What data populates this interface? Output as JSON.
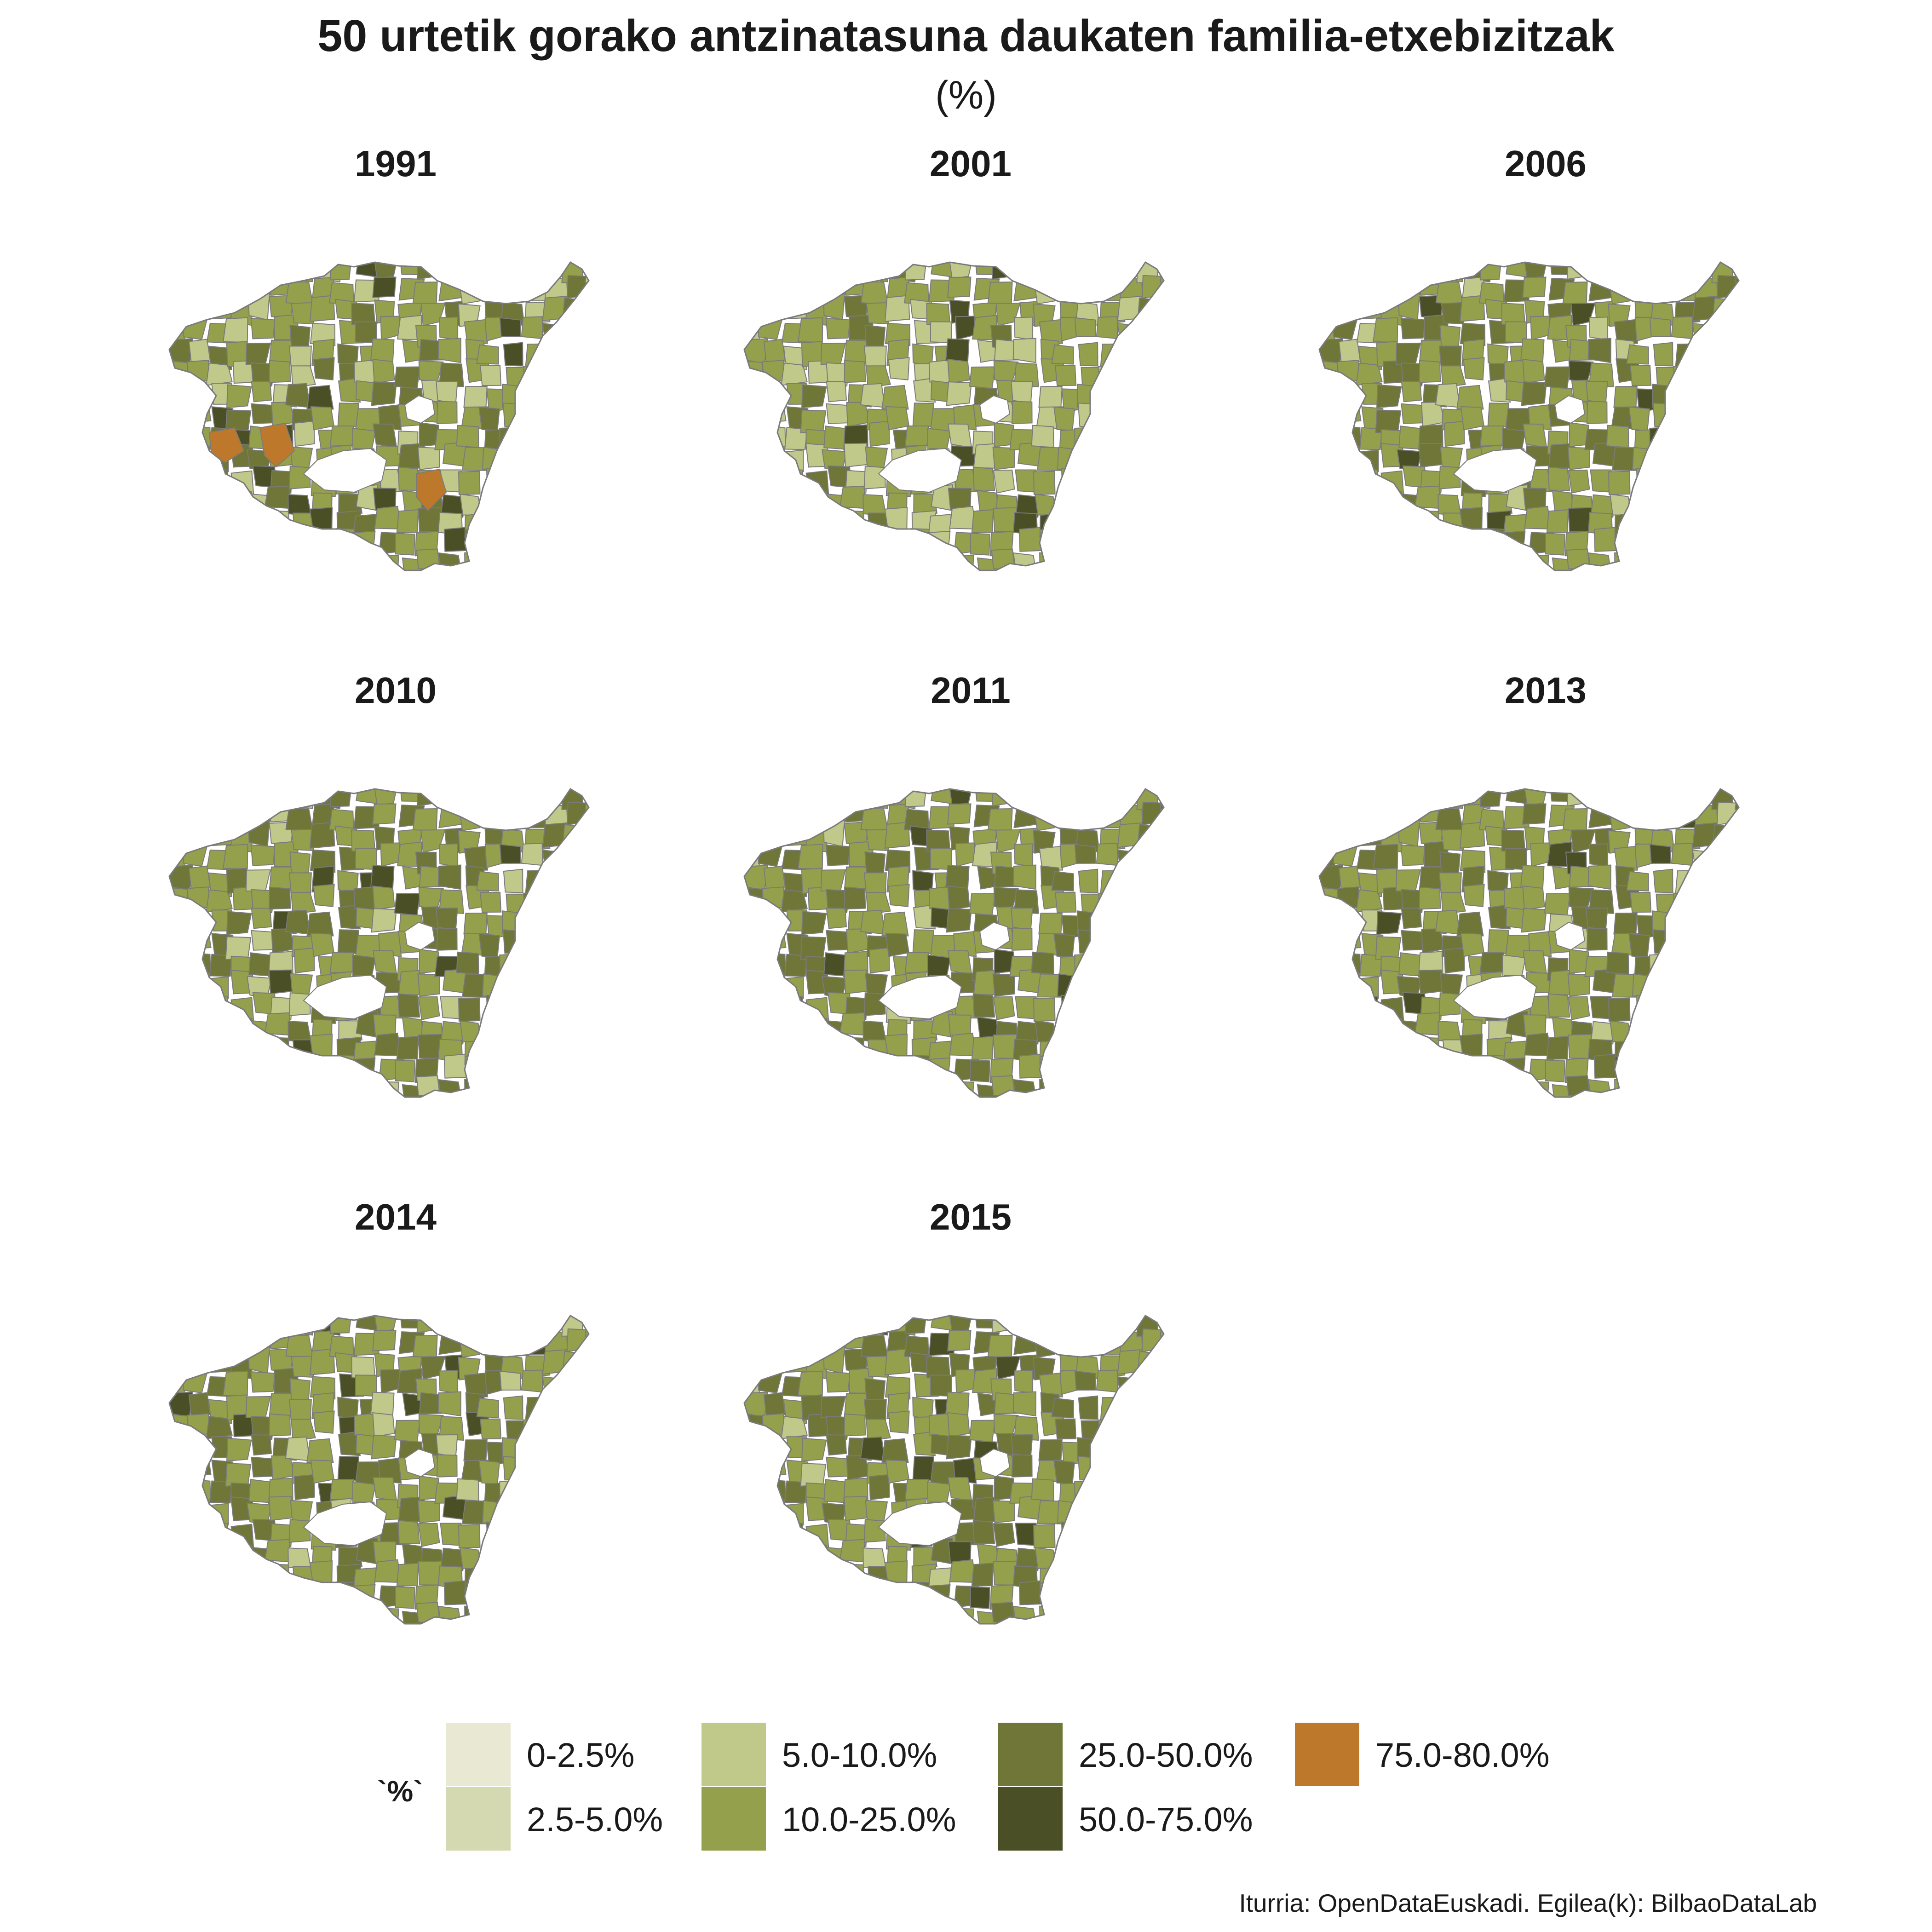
{
  "title": "50 urtetik gorako antzinatasuna daukaten familia-etxebizitzak",
  "subtitle": "(%)",
  "legend": {
    "title": "`%`",
    "items": [
      {
        "label": "0-2.5%",
        "color": "#e8e8d3"
      },
      {
        "label": "2.5-5.0%",
        "color": "#d5d9b2"
      },
      {
        "label": "5.0-10.0%",
        "color": "#c1c98a"
      },
      {
        "label": "10.0-25.0%",
        "color": "#95a04c"
      },
      {
        "label": "25.0-50.0%",
        "color": "#6f7637"
      },
      {
        "label": "50.0-75.0%",
        "color": "#4a4f25"
      },
      {
        "label": "75.0-80.0%",
        "color": "#be782c"
      }
    ]
  },
  "panels": [
    {
      "year": "1991"
    },
    {
      "year": "2001"
    },
    {
      "year": "2006"
    },
    {
      "year": "2010"
    },
    {
      "year": "2011"
    },
    {
      "year": "2013"
    },
    {
      "year": "2014"
    },
    {
      "year": "2015"
    }
  ],
  "caption": "Iturria: OpenDataEuskadi. Egilea(k): BilbaoDataLab",
  "colors": {
    "border": "#7a7a7a",
    "background": "#ffffff"
  }
}
